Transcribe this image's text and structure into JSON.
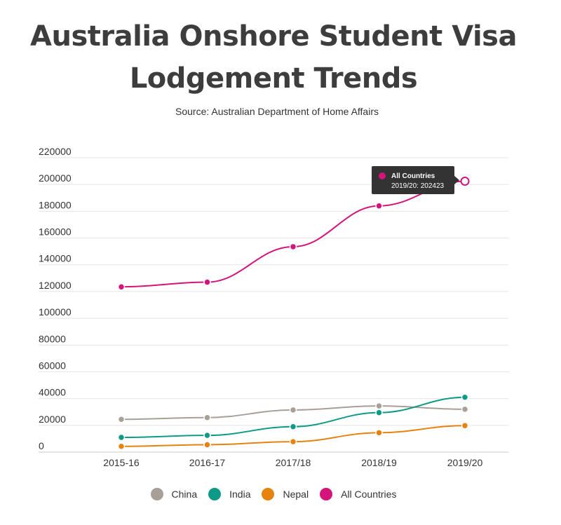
{
  "chart_data": {
    "type": "line",
    "title": "Australia Onshore Student Visa Lodgement Trends",
    "subtitle": "Source: Australian Department of Home Affairs",
    "categories": [
      "2015-16",
      "2016-17",
      "2017/18",
      "2018/19",
      "2019/20"
    ],
    "y_ticks": [
      "0",
      "20000",
      "40000",
      "60000",
      "80000",
      "100000",
      "120000",
      "140000",
      "160000",
      "180000",
      "200000",
      "220000"
    ],
    "ylim": [
      0,
      220000
    ],
    "grid": true,
    "legend_placement": "bottom",
    "series": [
      {
        "name": "China",
        "color": "#a89f97",
        "values": [
          24500,
          25800,
          31500,
          34500,
          32000
        ]
      },
      {
        "name": "India",
        "color": "#0e9a87",
        "values": [
          11000,
          12500,
          19000,
          29500,
          41000
        ]
      },
      {
        "name": "Nepal",
        "color": "#e68310",
        "values": [
          4300,
          5500,
          7800,
          14500,
          19800
        ]
      },
      {
        "name": "All Countries",
        "color": "#d4147a",
        "values": [
          123500,
          127000,
          153500,
          184000,
          202423
        ]
      }
    ],
    "tooltip": {
      "series": "All Countries",
      "text": "2019/20: 202423"
    }
  }
}
